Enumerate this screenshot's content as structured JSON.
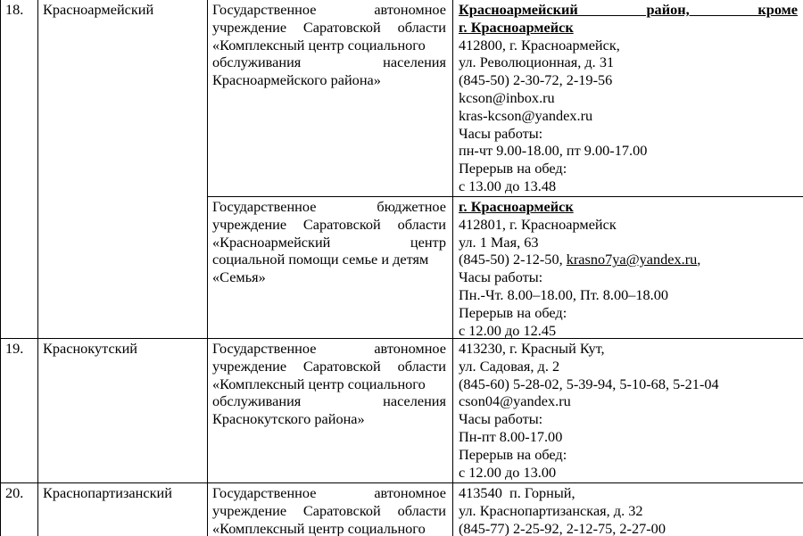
{
  "rows": [
    {
      "num": "18.",
      "district": "Красноармейский",
      "orgs": [
        {
          "lines": [
            "Государственное автономное",
            "учреждение Саратовской области",
            "«Комплексный центр социального",
            "обслуживания населения",
            "Красноармейского района»"
          ],
          "contact_heading": [
            "Красноармейский район, кроме",
            "г. Красноармейск"
          ],
          "contact": [
            "412800, г. Красноармейск,",
            "ул. Революционная, д. 31",
            "(845-50) 2-30-72, 2-19-56",
            "kcson@inbox.ru",
            "kras-kcson@yandex.ru",
            "Часы работы:",
            "пн-чт 9.00-18.00, пт 9.00-17.00",
            "Перерыв на обед:",
            "с 13.00 до 13.48"
          ]
        },
        {
          "lines": [
            "Государственное бюджетное",
            "учреждение Саратовской области",
            "«Красноармейский центр",
            "социальной помощи семье и детям",
            "«Семья»"
          ],
          "contact_heading": [
            "г. Красноармейск"
          ],
          "contact": [
            "412801, г. Красноармейск",
            "ул. 1 Мая, 63"
          ],
          "phone": "(845-50) 2-12-50, ",
          "email": "krasno7ya@yandex.ru",
          "contact2": [
            "Часы работы:",
            "Пн.-Чт. 8.00–18.00, Пт. 8.00–18.00",
            "Перерыв на обед:",
            "с 12.00 до 12.45"
          ]
        }
      ]
    },
    {
      "num": "19.",
      "district": "Краснокутский",
      "orgs": [
        {
          "lines": [
            "Государственное автономное",
            "учреждение Саратовской области",
            "«Комплексный центр социального",
            "обслуживания населения",
            "Краснокутского района»"
          ],
          "contact": [
            "413230, г. Красный Кут,",
            "ул. Садовая, д. 2",
            "(845-60) 5-28-02, 5-39-94, 5-10-68, 5-21-04",
            "cson04@yandex.ru",
            "Часы работы:",
            "Пн-пт 8.00-17.00",
            "Перерыв на обед:",
            "с 12.00 до 13.00"
          ]
        }
      ]
    },
    {
      "num": "20.",
      "district": "Краснопартизанский",
      "orgs": [
        {
          "lines": [
            "Государственное автономное",
            "учреждение Саратовской области",
            "«Комплексный центр социального"
          ],
          "contact": [
            "413540  п. Горный,",
            "ул. Краснопартизанская, д. 32",
            "(845-77) 2-25-92, 2-12-75, 2-27-00"
          ]
        }
      ]
    }
  ]
}
